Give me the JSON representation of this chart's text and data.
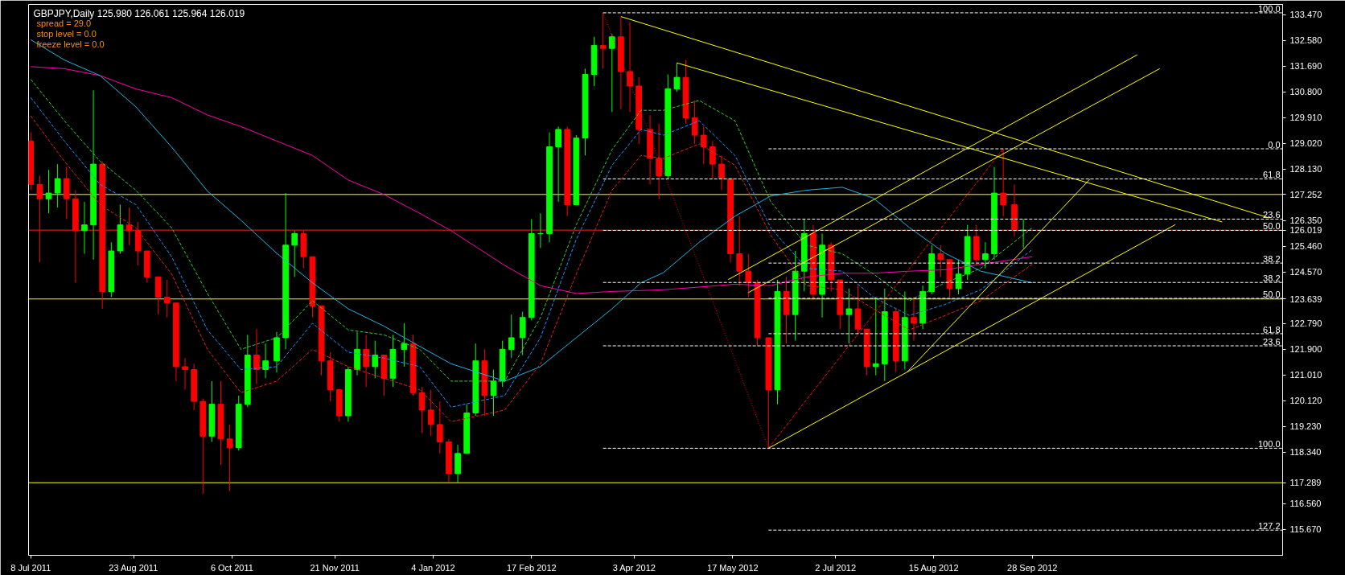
{
  "chart_data": {
    "type": "candlestick",
    "title": "GBPJPY,Daily  125.980 126.061 125.964 126.019",
    "annotations": [
      "spread = 29.0",
      "stop level = 0.0",
      "freeze level = 0.0",
      {
        "text": "100.0",
        "x": "2013-01-18",
        "y": 133.53
      },
      {
        "text": "0.0",
        "x": "2013-01-18",
        "y": 128.83
      },
      {
        "text": "61.8",
        "x": "2013-01-18",
        "y": 127.79
      },
      {
        "text": "23.6",
        "x": "2013-01-18",
        "y": 126.4
      },
      {
        "text": "50.0",
        "x": "2013-01-18",
        "y": 126.01
      },
      {
        "text": "38.2",
        "x": "2013-01-18",
        "y": 124.88
      },
      {
        "text": "38.2",
        "x": "2013-01-18",
        "y": 124.21
      },
      {
        "text": "50.0",
        "x": "2013-01-18",
        "y": 123.66
      },
      {
        "text": "61.8",
        "x": "2013-01-18",
        "y": 122.44
      },
      {
        "text": "23.6",
        "x": "2013-01-18",
        "y": 122.02
      },
      {
        "text": "100.0",
        "x": "2013-01-18",
        "y": 118.48
      },
      {
        "text": "127.2",
        "x": "2013-01-18",
        "y": 115.65
      }
    ],
    "x": [
      "2011-07-08",
      "2011-07-12",
      "2011-07-16",
      "2011-07-20",
      "2011-07-24",
      "2011-07-28",
      "2011-08-01",
      "2011-08-05",
      "2011-08-09",
      "2011-08-13",
      "2011-08-17",
      "2011-08-21",
      "2011-08-25",
      "2011-08-29",
      "2011-09-03",
      "2011-09-07",
      "2011-09-11",
      "2011-09-15",
      "2011-09-19",
      "2011-09-23",
      "2011-09-27",
      "2011-10-01",
      "2011-10-05",
      "2011-10-09",
      "2011-10-13",
      "2011-10-17",
      "2011-10-21",
      "2011-10-26",
      "2011-10-30",
      "2011-11-03",
      "2011-11-07",
      "2011-11-11",
      "2011-11-15",
      "2011-11-19",
      "2011-11-23",
      "2011-11-27",
      "2011-12-01",
      "2011-12-05",
      "2011-12-09",
      "2011-12-13",
      "2011-12-17",
      "2011-12-22",
      "2011-12-26",
      "2011-12-30",
      "2012-01-03",
      "2012-01-07",
      "2012-01-11",
      "2012-01-15",
      "2012-01-19",
      "2012-01-23",
      "2012-01-27",
      "2012-01-31",
      "2012-02-04",
      "2012-02-08",
      "2012-02-13",
      "2012-02-17",
      "2012-02-21",
      "2012-02-25",
      "2012-02-29",
      "2012-03-04",
      "2012-03-08",
      "2012-03-12",
      "2012-03-16",
      "2012-03-20",
      "2012-03-24",
      "2012-03-28",
      "2012-04-01",
      "2012-04-05",
      "2012-04-10",
      "2012-04-14",
      "2012-04-18",
      "2012-04-22",
      "2012-04-26",
      "2012-04-30",
      "2012-05-04",
      "2012-05-08",
      "2012-05-12",
      "2012-05-16",
      "2012-05-20",
      "2012-05-24",
      "2012-05-28",
      "2012-06-02",
      "2012-06-06",
      "2012-06-10",
      "2012-06-14",
      "2012-06-18",
      "2012-06-22",
      "2012-06-26",
      "2012-06-30",
      "2012-07-04",
      "2012-07-08",
      "2012-07-12",
      "2012-07-16",
      "2012-07-20",
      "2012-07-24",
      "2012-07-29",
      "2012-08-02",
      "2012-08-06",
      "2012-08-10",
      "2012-08-14",
      "2012-08-18",
      "2012-08-22",
      "2012-08-26",
      "2012-08-30",
      "2012-09-03",
      "2012-09-07",
      "2012-09-11",
      "2012-09-15",
      "2012-09-20",
      "2012-09-24"
    ],
    "ohlc": [
      [
        129.1,
        129.4,
        127.4,
        127.6
      ],
      [
        127.6,
        127.9,
        124.9,
        127.1
      ],
      [
        127.1,
        128.1,
        126.6,
        127.3
      ],
      [
        127.3,
        128.3,
        126.8,
        127.8
      ],
      [
        127.8,
        128.2,
        126.4,
        127.1
      ],
      [
        127.1,
        127.4,
        124.2,
        126.0
      ],
      [
        126.0,
        127.0,
        125.2,
        126.2
      ],
      [
        126.2,
        130.85,
        125.0,
        128.3
      ],
      [
        128.3,
        128.4,
        123.3,
        123.9
      ],
      [
        123.9,
        125.6,
        123.7,
        125.3
      ],
      [
        125.3,
        126.9,
        125.2,
        126.2
      ],
      [
        126.2,
        126.8,
        125.5,
        126.0
      ],
      [
        126.0,
        126.3,
        124.8,
        125.3
      ],
      [
        125.3,
        125.3,
        124.2,
        124.4
      ],
      [
        124.4,
        124.4,
        123.1,
        123.7
      ],
      [
        123.7,
        124.3,
        123.0,
        123.5
      ],
      [
        123.5,
        123.5,
        120.8,
        121.3
      ],
      [
        121.3,
        121.6,
        120.5,
        121.2
      ],
      [
        121.2,
        121.4,
        119.8,
        120.1
      ],
      [
        120.1,
        120.2,
        116.9,
        118.9
      ],
      [
        118.9,
        120.8,
        118.7,
        120.0
      ],
      [
        120.0,
        120.8,
        117.9,
        118.8
      ],
      [
        118.8,
        119.3,
        117.0,
        118.5
      ],
      [
        118.5,
        120.3,
        118.4,
        120.0
      ],
      [
        120.0,
        122.4,
        119.9,
        121.7
      ],
      [
        121.7,
        122.6,
        120.7,
        121.2
      ],
      [
        121.2,
        122.1,
        120.9,
        121.5
      ],
      [
        121.5,
        122.5,
        121.1,
        122.3
      ],
      [
        122.3,
        127.3,
        121.9,
        125.5
      ],
      [
        125.5,
        126.0,
        124.4,
        125.9
      ],
      [
        125.9,
        126.0,
        124.7,
        125.1
      ],
      [
        125.1,
        125.1,
        123.0,
        123.4
      ],
      [
        123.4,
        123.4,
        121.0,
        121.5
      ],
      [
        121.5,
        121.8,
        120.1,
        120.5
      ],
      [
        120.5,
        120.5,
        119.4,
        119.6
      ],
      [
        119.6,
        121.3,
        119.4,
        121.2
      ],
      [
        121.2,
        122.5,
        121.0,
        121.9
      ],
      [
        121.9,
        122.4,
        120.6,
        121.3
      ],
      [
        121.3,
        122.2,
        120.9,
        121.7
      ],
      [
        121.7,
        121.7,
        120.3,
        120.9
      ],
      [
        120.9,
        122.4,
        120.6,
        121.9
      ],
      [
        121.9,
        122.8,
        121.3,
        122.1
      ],
      [
        122.1,
        122.4,
        120.3,
        120.4
      ],
      [
        120.4,
        120.6,
        119.0,
        119.8
      ],
      [
        119.8,
        120.5,
        118.9,
        119.3
      ],
      [
        119.3,
        120.1,
        118.3,
        118.7
      ],
      [
        118.7,
        118.8,
        117.3,
        117.6
      ],
      [
        117.6,
        118.6,
        117.3,
        118.3
      ],
      [
        118.3,
        120.0,
        118.3,
        119.7
      ],
      [
        119.7,
        122.1,
        119.6,
        121.5
      ],
      [
        121.5,
        121.9,
        119.6,
        120.3
      ],
      [
        120.3,
        121.2,
        119.6,
        120.8
      ],
      [
        120.8,
        122.2,
        120.6,
        121.9
      ],
      [
        121.9,
        123.1,
        121.6,
        122.3
      ],
      [
        122.3,
        123.2,
        121.7,
        123.0
      ],
      [
        123.0,
        126.4,
        122.9,
        125.9
      ],
      [
        125.9,
        126.6,
        125.4,
        125.9
      ],
      [
        125.9,
        129.4,
        125.6,
        128.9
      ],
      [
        128.9,
        129.6,
        127.0,
        129.5
      ],
      [
        129.5,
        129.6,
        126.5,
        126.9
      ],
      [
        126.9,
        129.3,
        126.9,
        129.2
      ],
      [
        129.2,
        131.6,
        128.6,
        131.4
      ],
      [
        131.4,
        132.7,
        131.0,
        132.4
      ],
      [
        132.4,
        133.53,
        131.6,
        132.3
      ],
      [
        132.3,
        132.8,
        130.1,
        132.7
      ],
      [
        132.7,
        133.4,
        130.2,
        131.5
      ],
      [
        131.5,
        133.2,
        130.1,
        131.0
      ],
      [
        131.0,
        131.3,
        129.0,
        129.5
      ],
      [
        129.5,
        130.0,
        127.6,
        128.5
      ],
      [
        128.5,
        129.7,
        127.1,
        127.9
      ],
      [
        127.9,
        131.4,
        127.8,
        130.9
      ],
      [
        130.9,
        131.8,
        130.8,
        131.3
      ],
      [
        131.3,
        131.9,
        129.7,
        129.9
      ],
      [
        129.9,
        130.5,
        129.0,
        129.3
      ],
      [
        129.3,
        129.6,
        128.3,
        128.9
      ],
      [
        128.9,
        129.1,
        127.8,
        128.3
      ],
      [
        128.3,
        128.6,
        127.4,
        127.8
      ],
      [
        127.8,
        127.8,
        124.9,
        125.2
      ],
      [
        125.2,
        126.5,
        124.1,
        124.6
      ],
      [
        124.6,
        125.2,
        123.7,
        124.2
      ],
      [
        124.2,
        124.3,
        122.0,
        122.3
      ],
      [
        122.3,
        122.3,
        118.48,
        120.5
      ],
      [
        120.5,
        124.3,
        120.0,
        123.9
      ],
      [
        123.9,
        124.4,
        122.1,
        123.1
      ],
      [
        123.1,
        125.3,
        122.2,
        124.6
      ],
      [
        124.6,
        126.4,
        123.9,
        125.9
      ],
      [
        125.9,
        126.2,
        123.6,
        123.8
      ],
      [
        123.8,
        125.9,
        123.0,
        125.5
      ],
      [
        125.5,
        125.6,
        123.9,
        124.3
      ],
      [
        124.3,
        124.3,
        122.6,
        123.1
      ],
      [
        123.1,
        124.0,
        122.1,
        123.3
      ],
      [
        123.3,
        124.1,
        122.4,
        122.6
      ],
      [
        122.6,
        122.6,
        121.0,
        121.3
      ],
      [
        121.3,
        123.7,
        121.0,
        121.4
      ],
      [
        121.4,
        124.0,
        120.8,
        123.2
      ],
      [
        123.2,
        123.3,
        121.1,
        121.5
      ],
      [
        121.5,
        123.9,
        121.2,
        123.0
      ],
      [
        123.0,
        123.7,
        122.2,
        122.8
      ],
      [
        122.8,
        124.1,
        122.6,
        123.9
      ],
      [
        123.9,
        125.5,
        123.8,
        125.2
      ],
      [
        125.2,
        125.5,
        124.4,
        125.0
      ],
      [
        125.0,
        125.0,
        123.7,
        124.0
      ],
      [
        124.0,
        125.0,
        123.8,
        124.5
      ],
      [
        124.5,
        126.2,
        124.3,
        125.8
      ],
      [
        125.8,
        126.2,
        124.8,
        125.0
      ],
      [
        125.0,
        125.6,
        124.7,
        125.2
      ],
      [
        125.2,
        128.2,
        125.0,
        127.3
      ],
      [
        127.3,
        128.83,
        126.5,
        126.9
      ],
      [
        126.9,
        127.6,
        125.8,
        126.0
      ],
      [
        126.0,
        126.4,
        125.4,
        126.019
      ]
    ],
    "colors": [
      "#ff0000",
      "#ff0000",
      "#00ff00",
      "#00ff00",
      "#ff0000",
      "#ff0000",
      "#00ff00",
      "#00ff00",
      "#ff0000",
      "#00ff00",
      "#00ff00",
      "#ff0000",
      "#ff0000",
      "#ff0000",
      "#ff0000",
      "#ff0000",
      "#ff0000",
      "#ff0000",
      "#ff0000",
      "#ff0000",
      "#00ff00",
      "#ff0000",
      "#ff0000",
      "#00ff00",
      "#00ff00",
      "#ff0000",
      "#00ff00",
      "#00ff00",
      "#00ff00",
      "#00ff00",
      "#ff0000",
      "#ff0000",
      "#ff0000",
      "#ff0000",
      "#ff0000",
      "#00ff00",
      "#00ff00",
      "#ff0000",
      "#00ff00",
      "#ff0000",
      "#00ff00",
      "#00ff00",
      "#ff0000",
      "#ff0000",
      "#ff0000",
      "#ff0000",
      "#ff0000",
      "#00ff00",
      "#00ff00",
      "#00ff00",
      "#ff0000",
      "#00ff00",
      "#00ff00",
      "#00ff00",
      "#00ff00",
      "#00ff00",
      "#00ff00",
      "#00ff00",
      "#00ff00",
      "#ff0000",
      "#00ff00",
      "#00ff00",
      "#00ff00",
      "#ff0000",
      "#00ff00",
      "#ff0000",
      "#ff0000",
      "#ff0000",
      "#ff0000",
      "#ff0000",
      "#00ff00",
      "#00ff00",
      "#ff0000",
      "#ff0000",
      "#ff0000",
      "#ff0000",
      "#ff0000",
      "#ff0000",
      "#ff0000",
      "#ff0000",
      "#ff0000",
      "#ff0000",
      "#00ff00",
      "#ff0000",
      "#00ff00",
      "#00ff00",
      "#ff0000",
      "#00ff00",
      "#ff0000",
      "#ff0000",
      "#00ff00",
      "#ff0000",
      "#ff0000",
      "#00ff00",
      "#00ff00",
      "#ff0000",
      "#00ff00",
      "#ff0000",
      "#00ff00",
      "#00ff00",
      "#ff0000",
      "#ff0000",
      "#00ff00",
      "#00ff00",
      "#ff0000",
      "#00ff00",
      "#00ff00",
      "#ff0000",
      "#ff0000",
      "#00ff00"
    ],
    "xlim": [
      "2011-07-07",
      "2013-01-18"
    ],
    "ylim": [
      114.78,
      133.82
    ],
    "xticks": [
      {
        "value": "2011-07-08",
        "label": "8 Jul 2011"
      },
      {
        "value": "2011-08-23",
        "label": "23 Aug 2011"
      },
      {
        "value": "2011-10-06",
        "label": "6 Oct 2011"
      },
      {
        "value": "2011-11-21",
        "label": "21 Nov 2011"
      },
      {
        "value": "2012-01-04",
        "label": "4 Jan 2012"
      },
      {
        "value": "2012-02-17",
        "label": "17 Feb 2012"
      },
      {
        "value": "2012-04-03",
        "label": "3 Apr 2012"
      },
      {
        "value": "2012-05-17",
        "label": "17 May 2012"
      },
      {
        "value": "2012-07-02",
        "label": "2 Jul 2012"
      },
      {
        "value": "2012-08-15",
        "label": "15 Aug 2012"
      },
      {
        "value": "2012-09-28",
        "label": "28 Sep 2012"
      }
    ],
    "yticks": [
      {
        "value": 133.47,
        "label": "133.470"
      },
      {
        "value": 132.58,
        "label": "132.580"
      },
      {
        "value": 131.69,
        "label": "131.690"
      },
      {
        "value": 130.8,
        "label": "130.800"
      },
      {
        "value": 129.91,
        "label": "129.910"
      },
      {
        "value": 129.02,
        "label": "129.020"
      },
      {
        "value": 128.13,
        "label": "128.130"
      },
      {
        "value": 126.35,
        "label": "126.350"
      },
      {
        "value": 125.46,
        "label": "125.460"
      },
      {
        "value": 124.57,
        "label": "124.570"
      },
      {
        "value": 122.79,
        "label": "122.790"
      },
      {
        "value": 121.9,
        "label": "121.900"
      },
      {
        "value": 121.01,
        "label": "121.010"
      },
      {
        "value": 120.12,
        "label": "120.120"
      },
      {
        "value": 119.23,
        "label": "119.230"
      },
      {
        "value": 118.34,
        "label": "118.340"
      },
      {
        "value": 116.56,
        "label": "116.560"
      },
      {
        "value": 115.67,
        "label": "115.670"
      }
    ],
    "grid": false,
    "ref_lines": [
      {
        "axis": "y",
        "value": 127.252,
        "label": "127.252",
        "color": "#ffff00"
      },
      {
        "axis": "y",
        "value": 123.639,
        "label": "123.639",
        "color": "#ffff00"
      },
      {
        "axis": "y",
        "value": 117.289,
        "label": "117.289",
        "color": "#ffff00"
      },
      {
        "axis": "y",
        "value": 126.019,
        "label": "126.019",
        "color": "#ff2020"
      }
    ],
    "series": [
      {
        "type": "line",
        "color": "#ff00aa",
        "line_style": "solid",
        "x": [
          "2011-07-08",
          "2011-07-23",
          "2011-08-08",
          "2011-08-24",
          "2011-09-09",
          "2011-09-25",
          "2011-10-10",
          "2011-10-26",
          "2011-11-11",
          "2011-11-27",
          "2011-12-13",
          "2011-12-29",
          "2012-01-12",
          "2012-02-05",
          "2012-02-21",
          "2012-03-08",
          "2012-03-24",
          "2012-04-06",
          "2012-04-16",
          "2012-05-02",
          "2012-05-18",
          "2012-06-03",
          "2012-06-19",
          "2012-07-05",
          "2012-07-19",
          "2012-08-04",
          "2012-08-20",
          "2012-09-05",
          "2012-09-28"
        ],
        "values": [
          131.67,
          131.6,
          131.36,
          130.9,
          130.6,
          130.0,
          129.6,
          129.1,
          128.6,
          127.75,
          127.25,
          126.6,
          126.0,
          124.8,
          124.1,
          123.83,
          123.9,
          123.93,
          123.96,
          124.05,
          124.15,
          124.1,
          124.4,
          124.53,
          124.53,
          124.6,
          124.65,
          124.84,
          125.1
        ]
      },
      {
        "type": "line",
        "color": "#1eb4e6",
        "line_style": "solid",
        "x": [
          "2011-07-08",
          "2011-07-23",
          "2011-08-08",
          "2011-08-24",
          "2011-09-09",
          "2011-09-25",
          "2011-10-10",
          "2011-10-26",
          "2011-11-11",
          "2011-11-27",
          "2011-12-13",
          "2011-12-29",
          "2012-01-12",
          "2012-02-05",
          "2012-02-21",
          "2012-03-08",
          "2012-03-24",
          "2012-04-06",
          "2012-04-16",
          "2012-05-02",
          "2012-05-18",
          "2012-06-03",
          "2012-06-19",
          "2012-07-05",
          "2012-07-19",
          "2012-08-04",
          "2012-08-20",
          "2012-09-05",
          "2012-09-28"
        ],
        "values": [
          132.6,
          131.9,
          131.36,
          130.28,
          128.89,
          127.37,
          126.36,
          125.22,
          124.2,
          123.3,
          122.7,
          122.0,
          121.4,
          120.8,
          121.3,
          122.3,
          123.3,
          124.2,
          124.55,
          125.6,
          126.5,
          127.2,
          127.4,
          127.5,
          127.12,
          126.11,
          125.22,
          124.6,
          124.2
        ]
      },
      {
        "type": "line",
        "color": "#32cd32",
        "line_style": "dashed",
        "x": [
          "2011-07-08",
          "2011-07-23",
          "2011-08-08",
          "2011-08-24",
          "2011-09-09",
          "2011-09-25",
          "2011-10-10",
          "2011-10-26",
          "2011-11-11",
          "2011-11-27",
          "2011-12-13",
          "2011-12-29",
          "2012-01-12",
          "2012-02-05",
          "2012-02-21",
          "2012-03-08",
          "2012-03-24",
          "2012-04-06",
          "2012-04-16",
          "2012-05-02",
          "2012-05-18",
          "2012-06-03",
          "2012-06-19",
          "2012-07-05",
          "2012-07-19",
          "2012-08-04",
          "2012-08-20",
          "2012-09-05",
          "2012-09-28"
        ],
        "values": [
          131.23,
          129.8,
          128.4,
          127.4,
          126.1,
          123.83,
          121.9,
          122.3,
          123.58,
          122.57,
          122.4,
          121.9,
          120.8,
          120.8,
          123.0,
          126.2,
          128.8,
          130.16,
          130.16,
          130.5,
          129.8,
          127.0,
          125.5,
          125.2,
          124.5,
          123.58,
          124.2,
          124.7,
          126.1
        ]
      },
      {
        "type": "line",
        "color": "#1e90ff",
        "line_style": "dashed",
        "x": [
          "2011-07-08",
          "2011-07-23",
          "2011-08-08",
          "2011-08-24",
          "2011-09-09",
          "2011-09-25",
          "2011-10-10",
          "2011-10-26",
          "2011-11-11",
          "2011-11-27",
          "2011-12-13",
          "2011-12-29",
          "2012-01-12",
          "2012-02-05",
          "2012-02-21",
          "2012-03-08",
          "2012-03-24",
          "2012-04-06",
          "2012-04-16",
          "2012-05-02",
          "2012-05-18",
          "2012-06-03",
          "2012-06-19",
          "2012-07-05",
          "2012-07-19",
          "2012-08-04",
          "2012-08-20",
          "2012-09-05",
          "2012-09-28"
        ],
        "values": [
          130.6,
          129.1,
          127.6,
          126.9,
          125.1,
          122.57,
          121.2,
          121.3,
          122.8,
          121.8,
          121.6,
          121.3,
          119.9,
          120.3,
          122.3,
          125.7,
          128.26,
          129.5,
          129.3,
          129.8,
          128.6,
          126.1,
          124.7,
          124.6,
          123.7,
          123.07,
          123.45,
          123.96,
          125.35
        ]
      },
      {
        "type": "line",
        "color": "#e61e1e",
        "line_style": "dashed",
        "x": [
          "2011-07-08",
          "2011-07-23",
          "2011-08-08",
          "2011-08-24",
          "2011-09-09",
          "2011-09-25",
          "2011-10-10",
          "2011-10-26",
          "2011-11-11",
          "2011-11-27",
          "2011-12-13",
          "2011-12-29",
          "2012-01-12",
          "2012-02-05",
          "2012-02-21",
          "2012-03-08",
          "2012-03-24",
          "2012-04-06",
          "2012-04-16",
          "2012-05-02",
          "2012-05-18",
          "2012-06-03",
          "2012-06-19",
          "2012-07-05",
          "2012-07-19",
          "2012-08-04",
          "2012-08-20",
          "2012-09-05",
          "2012-09-28"
        ],
        "values": [
          129.97,
          128.4,
          126.9,
          126.1,
          124.5,
          121.9,
          120.4,
          120.8,
          121.9,
          121.3,
          120.9,
          120.5,
          119.4,
          119.8,
          121.4,
          124.5,
          127.4,
          128.6,
          128.5,
          129.0,
          128.26,
          125.85,
          124.1,
          123.96,
          123.3,
          122.57,
          123.07,
          123.58,
          124.84
        ]
      },
      {
        "type": "line",
        "color": "#ff0000",
        "line_style": "dotted",
        "x": [
          "2012-03-20",
          "2012-06-02"
        ],
        "values": [
          133.53,
          118.48
        ]
      },
      {
        "type": "line",
        "color": "#ff0000",
        "line_style": "dashed",
        "x": [
          "2012-06-02",
          "2012-09-15"
        ],
        "values": [
          118.48,
          128.83
        ]
      },
      {
        "type": "line",
        "color": "#ffff00",
        "line_style": "solid",
        "x": [
          "2012-03-28",
          "2013-01-12"
        ],
        "values": [
          133.4,
          126.44
        ]
      },
      {
        "type": "line",
        "color": "#ffff00",
        "line_style": "solid",
        "x": [
          "2012-04-22",
          "2012-12-22"
        ],
        "values": [
          131.8,
          126.3
        ]
      },
      {
        "type": "line",
        "color": "#ffff00",
        "line_style": "solid",
        "x": [
          "2012-05-15",
          "2012-11-14"
        ],
        "values": [
          124.31,
          132.08
        ]
      },
      {
        "type": "line",
        "color": "#ffff00",
        "line_style": "solid",
        "x": [
          "2012-05-24",
          "2012-11-24"
        ],
        "values": [
          123.86,
          131.6
        ]
      },
      {
        "type": "line",
        "color": "#ffff00",
        "line_style": "solid",
        "x": [
          "2012-06-02",
          "2012-12-01"
        ],
        "values": [
          118.48,
          126.21
        ]
      },
      {
        "type": "line",
        "color": "#ffff00",
        "line_style": "solid",
        "x": [
          "2012-08-03",
          "2012-10-24"
        ],
        "values": [
          121.11,
          127.8
        ]
      },
      {
        "type": "line",
        "color": "#ffffff",
        "line_style": "dashed",
        "x": [
          "2012-03-20",
          "2013-01-18"
        ],
        "values": [
          133.53,
          133.53
        ]
      },
      {
        "type": "line",
        "color": "#ffffff",
        "line_style": "dashed",
        "x": [
          "2012-06-02",
          "2013-01-18"
        ],
        "values": [
          128.83,
          128.83
        ]
      },
      {
        "type": "line",
        "color": "#ffffff",
        "line_style": "dashed",
        "x": [
          "2012-03-20",
          "2013-01-18"
        ],
        "values": [
          127.79,
          127.79
        ]
      },
      {
        "type": "line",
        "color": "#ffffff",
        "line_style": "dashed",
        "x": [
          "2012-06-02",
          "2013-01-18"
        ],
        "values": [
          126.4,
          126.4
        ]
      },
      {
        "type": "line",
        "color": "#ffffff",
        "line_style": "dashed",
        "x": [
          "2012-03-20",
          "2013-01-18"
        ],
        "values": [
          126.01,
          126.01
        ]
      },
      {
        "type": "line",
        "color": "#ffffff",
        "line_style": "dashed",
        "x": [
          "2012-06-02",
          "2013-01-18"
        ],
        "values": [
          124.88,
          124.88
        ]
      },
      {
        "type": "line",
        "color": "#ffffff",
        "line_style": "dashed",
        "x": [
          "2012-03-20",
          "2013-01-18"
        ],
        "values": [
          124.21,
          124.21
        ]
      },
      {
        "type": "line",
        "color": "#ffffff",
        "line_style": "dashed",
        "x": [
          "2012-06-02",
          "2013-01-18"
        ],
        "values": [
          123.66,
          123.66
        ]
      },
      {
        "type": "line",
        "color": "#ffffff",
        "line_style": "dashed",
        "x": [
          "2012-06-02",
          "2013-01-18"
        ],
        "values": [
          122.44,
          122.44
        ]
      },
      {
        "type": "line",
        "color": "#ffffff",
        "line_style": "dashed",
        "x": [
          "2012-03-20",
          "2013-01-18"
        ],
        "values": [
          122.02,
          122.02
        ]
      },
      {
        "type": "line",
        "color": "#ffffff",
        "line_style": "dashed",
        "x": [
          "2012-03-20",
          "2013-01-18"
        ],
        "values": [
          118.48,
          118.48
        ]
      },
      {
        "type": "line",
        "color": "#ffffff",
        "line_style": "dashed",
        "x": [
          "2012-06-02",
          "2013-01-18"
        ],
        "values": [
          115.65,
          115.65
        ]
      }
    ]
  }
}
